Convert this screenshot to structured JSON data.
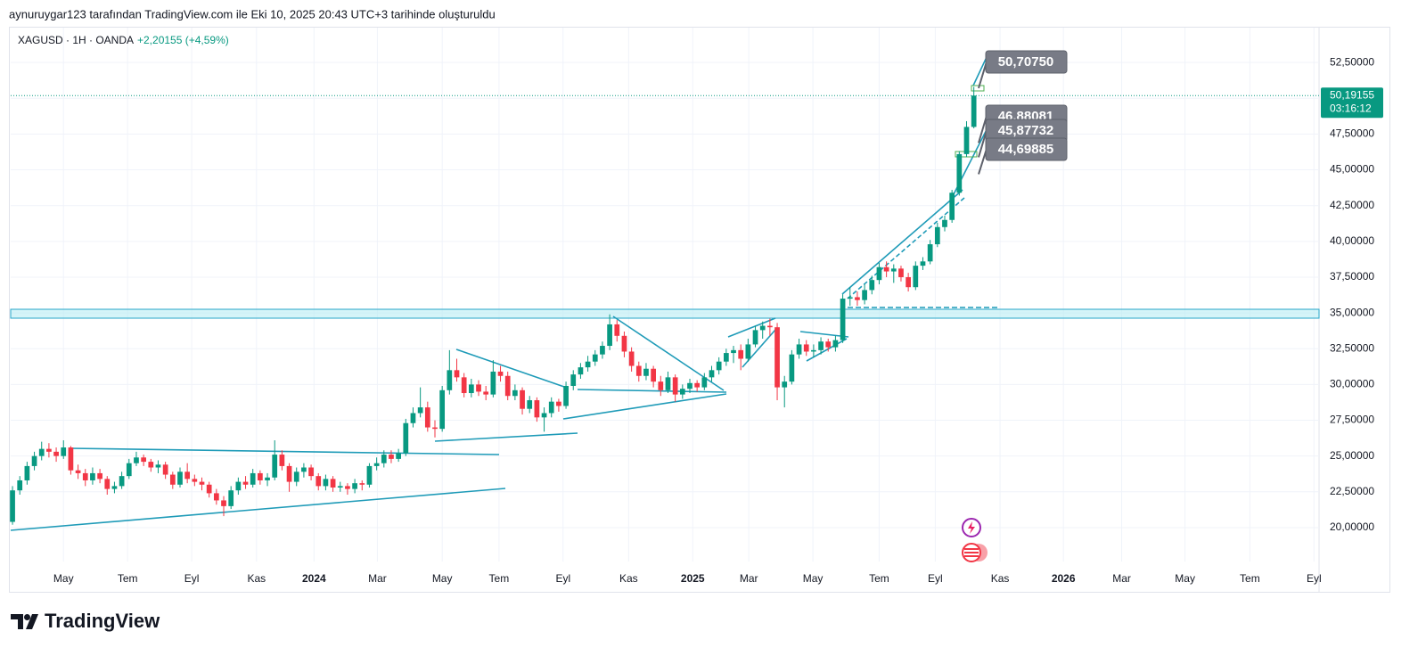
{
  "header": {
    "caption": "aynuruygar123 tarafından TradingView.com ile Eki 10, 2025 20:43 UTC+3 tarihinde oluşturuldu",
    "symbol": "XAGUSD · 1H · OANDA",
    "change": "+2,20155 (+4,59%)",
    "logo": "TradingView"
  },
  "chart_data": {
    "type": "candlestick",
    "up_color": "#089981",
    "down_color": "#f23645",
    "xlim": [
      -0.25,
      179.4
    ],
    "ylim": [
      17.63,
      55.0
    ],
    "xticks": [
      {
        "value": 7.0,
        "label": "May"
      },
      {
        "value": 15.8,
        "label": "Tem"
      },
      {
        "value": 24.6,
        "label": "Eyl"
      },
      {
        "value": 33.5,
        "label": "Kas"
      },
      {
        "value": 41.4,
        "label": "2024"
      },
      {
        "value": 50.1,
        "label": "Mar"
      },
      {
        "value": 59.0,
        "label": "May"
      },
      {
        "value": 66.8,
        "label": "Tem"
      },
      {
        "value": 75.6,
        "label": "Eyl"
      },
      {
        "value": 84.6,
        "label": "Kas"
      },
      {
        "value": 93.4,
        "label": "2025"
      },
      {
        "value": 101.1,
        "label": "Mar"
      },
      {
        "value": 109.9,
        "label": "May"
      },
      {
        "value": 119.0,
        "label": "Tem"
      },
      {
        "value": 126.7,
        "label": "Eyl"
      },
      {
        "value": 135.6,
        "label": "Kas"
      },
      {
        "value": 144.3,
        "label": "2026"
      },
      {
        "value": 152.3,
        "label": "Mar"
      },
      {
        "value": 161.0,
        "label": "May"
      },
      {
        "value": 169.9,
        "label": "Tem"
      },
      {
        "value": 178.7,
        "label": "Eyl"
      }
    ],
    "yticks": [
      {
        "value": 20,
        "label": "20,00000"
      },
      {
        "value": 22.5,
        "label": "22,50000"
      },
      {
        "value": 25,
        "label": "25,00000"
      },
      {
        "value": 27.5,
        "label": "27,50000"
      },
      {
        "value": 30,
        "label": "30,00000"
      },
      {
        "value": 32.5,
        "label": "32,50000"
      },
      {
        "value": 35,
        "label": "35,00000"
      },
      {
        "value": 37.5,
        "label": "37,50000"
      },
      {
        "value": 40,
        "label": "40,00000"
      },
      {
        "value": 42.5,
        "label": "42,50000"
      },
      {
        "value": 45,
        "label": "45,00000"
      },
      {
        "value": 47.5,
        "label": "47,50000"
      },
      {
        "value": 50,
        "label": "50,00000"
      },
      {
        "value": 52.5,
        "label": "52,50000"
      }
    ],
    "last_price": {
      "value": 50.19155,
      "label": "50,19155",
      "countdown": "03:16:12"
    },
    "annotations": [
      {
        "value": 50.7075,
        "label": "50,70750"
      },
      {
        "value": 46.88081,
        "label": "46,88081"
      },
      {
        "value": 45.87732,
        "label": "45,87732"
      },
      {
        "value": 44.69885,
        "label": "44,69885"
      }
    ],
    "candles": [
      [
        20.4,
        22.9,
        20.2,
        22.6
      ],
      [
        22.6,
        23.6,
        22.3,
        23.3
      ],
      [
        23.3,
        24.6,
        23.0,
        24.3
      ],
      [
        24.3,
        25.3,
        24.0,
        25.0
      ],
      [
        25.0,
        26.0,
        24.7,
        25.5
      ],
      [
        25.5,
        25.9,
        24.9,
        25.3
      ],
      [
        25.3,
        25.6,
        24.6,
        25.0
      ],
      [
        25.0,
        26.1,
        24.8,
        25.6
      ],
      [
        25.6,
        25.7,
        23.7,
        24.0
      ],
      [
        24.0,
        24.4,
        23.4,
        23.8
      ],
      [
        23.8,
        24.1,
        22.9,
        23.3
      ],
      [
        23.3,
        24.2,
        23.0,
        23.8
      ],
      [
        23.8,
        24.1,
        23.1,
        23.4
      ],
      [
        23.4,
        23.6,
        22.3,
        22.7
      ],
      [
        22.7,
        23.2,
        22.4,
        22.9
      ],
      [
        22.9,
        23.9,
        22.7,
        23.6
      ],
      [
        23.6,
        24.8,
        23.4,
        24.5
      ],
      [
        24.5,
        25.3,
        24.3,
        24.9
      ],
      [
        24.9,
        25.1,
        24.3,
        24.6
      ],
      [
        24.6,
        24.8,
        23.9,
        24.2
      ],
      [
        24.2,
        24.7,
        23.8,
        24.4
      ],
      [
        24.4,
        24.6,
        23.4,
        23.7
      ],
      [
        23.7,
        23.9,
        22.7,
        23.0
      ],
      [
        23.0,
        24.2,
        22.8,
        23.9
      ],
      [
        23.9,
        24.5,
        23.1,
        23.4
      ],
      [
        23.4,
        23.7,
        22.9,
        23.2
      ],
      [
        23.2,
        23.5,
        22.6,
        23.0
      ],
      [
        23.0,
        23.2,
        22.1,
        22.4
      ],
      [
        22.4,
        22.7,
        21.6,
        21.9
      ],
      [
        21.9,
        22.2,
        20.8,
        21.5
      ],
      [
        21.5,
        22.9,
        21.3,
        22.6
      ],
      [
        22.6,
        23.5,
        22.3,
        23.2
      ],
      [
        23.2,
        23.6,
        22.7,
        23.0
      ],
      [
        23.0,
        24.1,
        22.8,
        23.8
      ],
      [
        23.8,
        24.0,
        23.0,
        23.3
      ],
      [
        23.3,
        23.8,
        22.9,
        23.5
      ],
      [
        23.5,
        26.1,
        23.3,
        25.1
      ],
      [
        25.1,
        25.4,
        24.0,
        24.3
      ],
      [
        24.3,
        24.5,
        22.5,
        23.2
      ],
      [
        23.2,
        24.2,
        22.9,
        23.9
      ],
      [
        23.9,
        24.5,
        23.5,
        24.2
      ],
      [
        24.2,
        24.4,
        23.3,
        23.6
      ],
      [
        23.6,
        23.8,
        22.6,
        22.9
      ],
      [
        22.9,
        23.7,
        22.6,
        23.4
      ],
      [
        23.4,
        23.6,
        22.5,
        22.8
      ],
      [
        22.8,
        23.2,
        22.5,
        22.9
      ],
      [
        22.9,
        23.1,
        22.3,
        22.7
      ],
      [
        22.7,
        23.4,
        22.4,
        23.1
      ],
      [
        23.1,
        23.3,
        22.6,
        23.0
      ],
      [
        23.0,
        24.5,
        22.8,
        24.3
      ],
      [
        24.3,
        24.9,
        24.0,
        24.5
      ],
      [
        24.5,
        25.4,
        24.2,
        25.1
      ],
      [
        25.1,
        25.4,
        24.5,
        24.8
      ],
      [
        24.8,
        25.5,
        24.6,
        25.2
      ],
      [
        25.2,
        27.6,
        25.0,
        27.3
      ],
      [
        27.3,
        28.4,
        27.0,
        28.0
      ],
      [
        28.0,
        29.8,
        27.7,
        28.4
      ],
      [
        28.4,
        28.8,
        26.7,
        27.0
      ],
      [
        27.0,
        27.5,
        26.3,
        26.9
      ],
      [
        26.9,
        29.9,
        26.7,
        29.6
      ],
      [
        29.6,
        32.4,
        29.3,
        31.0
      ],
      [
        31.0,
        31.8,
        30.2,
        30.5
      ],
      [
        30.5,
        30.8,
        29.1,
        29.4
      ],
      [
        29.4,
        30.4,
        29.1,
        30.0
      ],
      [
        30.0,
        30.3,
        29.2,
        29.5
      ],
      [
        29.5,
        29.9,
        28.9,
        29.3
      ],
      [
        29.3,
        31.7,
        29.1,
        30.9
      ],
      [
        30.9,
        31.3,
        30.2,
        30.6
      ],
      [
        30.6,
        30.9,
        28.9,
        29.2
      ],
      [
        29.2,
        30.0,
        28.9,
        29.6
      ],
      [
        29.6,
        29.8,
        27.9,
        28.3
      ],
      [
        28.3,
        29.2,
        28.0,
        28.9
      ],
      [
        28.9,
        29.1,
        27.4,
        27.7
      ],
      [
        27.7,
        28.4,
        26.7,
        28.0
      ],
      [
        28.0,
        29.1,
        27.7,
        28.8
      ],
      [
        28.8,
        29.0,
        28.1,
        28.5
      ],
      [
        28.5,
        30.2,
        28.3,
        29.9
      ],
      [
        29.9,
        31.0,
        29.6,
        30.7
      ],
      [
        30.7,
        31.5,
        30.4,
        31.2
      ],
      [
        31.2,
        32.0,
        30.9,
        31.6
      ],
      [
        31.6,
        32.4,
        31.3,
        32.1
      ],
      [
        32.1,
        33.0,
        31.8,
        32.7
      ],
      [
        32.7,
        34.9,
        32.4,
        34.2
      ],
      [
        34.2,
        34.5,
        33.0,
        33.4
      ],
      [
        33.4,
        33.7,
        31.9,
        32.3
      ],
      [
        32.3,
        32.6,
        30.9,
        31.3
      ],
      [
        31.3,
        31.6,
        30.2,
        30.6
      ],
      [
        30.6,
        31.5,
        30.3,
        31.1
      ],
      [
        31.1,
        31.3,
        29.8,
        30.2
      ],
      [
        30.2,
        30.6,
        29.2,
        29.6
      ],
      [
        29.6,
        30.9,
        29.4,
        30.5
      ],
      [
        30.5,
        30.7,
        28.8,
        29.3
      ],
      [
        29.3,
        30.0,
        29.0,
        29.7
      ],
      [
        29.7,
        30.4,
        29.4,
        30.1
      ],
      [
        30.1,
        30.3,
        29.5,
        29.8
      ],
      [
        29.8,
        30.8,
        29.6,
        30.5
      ],
      [
        30.5,
        31.3,
        30.2,
        31.0
      ],
      [
        31.0,
        31.9,
        30.7,
        31.6
      ],
      [
        31.6,
        32.5,
        31.3,
        32.2
      ],
      [
        32.2,
        32.7,
        31.5,
        32.4
      ],
      [
        32.4,
        32.8,
        31.0,
        31.8
      ],
      [
        31.8,
        33.2,
        31.6,
        32.8
      ],
      [
        32.8,
        34.1,
        32.6,
        33.8
      ],
      [
        33.8,
        34.4,
        33.2,
        34.1
      ],
      [
        34.1,
        34.6,
        33.4,
        34.0
      ],
      [
        34.0,
        34.3,
        28.9,
        29.8
      ],
      [
        29.8,
        30.6,
        28.4,
        30.2
      ],
      [
        30.2,
        32.4,
        30.0,
        32.1
      ],
      [
        32.1,
        33.2,
        31.8,
        32.8
      ],
      [
        32.8,
        33.1,
        32.0,
        32.3
      ],
      [
        32.3,
        32.8,
        31.9,
        32.4
      ],
      [
        32.4,
        33.3,
        32.1,
        33.0
      ],
      [
        33.0,
        33.2,
        32.3,
        32.6
      ],
      [
        32.6,
        33.4,
        32.3,
        33.1
      ],
      [
        33.1,
        36.3,
        32.9,
        36.0
      ],
      [
        36.0,
        36.8,
        35.5,
        36.1
      ],
      [
        36.1,
        36.5,
        35.5,
        35.9
      ],
      [
        35.9,
        37.0,
        35.6,
        36.6
      ],
      [
        36.6,
        37.6,
        36.3,
        37.3
      ],
      [
        37.3,
        38.5,
        37.0,
        38.2
      ],
      [
        38.2,
        38.6,
        37.5,
        37.9
      ],
      [
        37.9,
        38.4,
        37.1,
        38.1
      ],
      [
        38.1,
        38.3,
        37.2,
        37.5
      ],
      [
        37.5,
        37.8,
        36.5,
        36.8
      ],
      [
        36.8,
        38.6,
        36.6,
        38.3
      ],
      [
        38.3,
        38.9,
        38.0,
        38.6
      ],
      [
        38.6,
        40.1,
        38.4,
        39.8
      ],
      [
        39.8,
        41.3,
        39.6,
        41.0
      ],
      [
        41.0,
        41.8,
        40.7,
        41.5
      ],
      [
        41.5,
        43.6,
        41.3,
        43.4
      ],
      [
        43.4,
        46.3,
        43.2,
        46.1
      ],
      [
        46.1,
        48.4,
        45.9,
        48.0
      ],
      [
        48.0,
        50.8,
        47.9,
        50.19
      ]
    ]
  }
}
